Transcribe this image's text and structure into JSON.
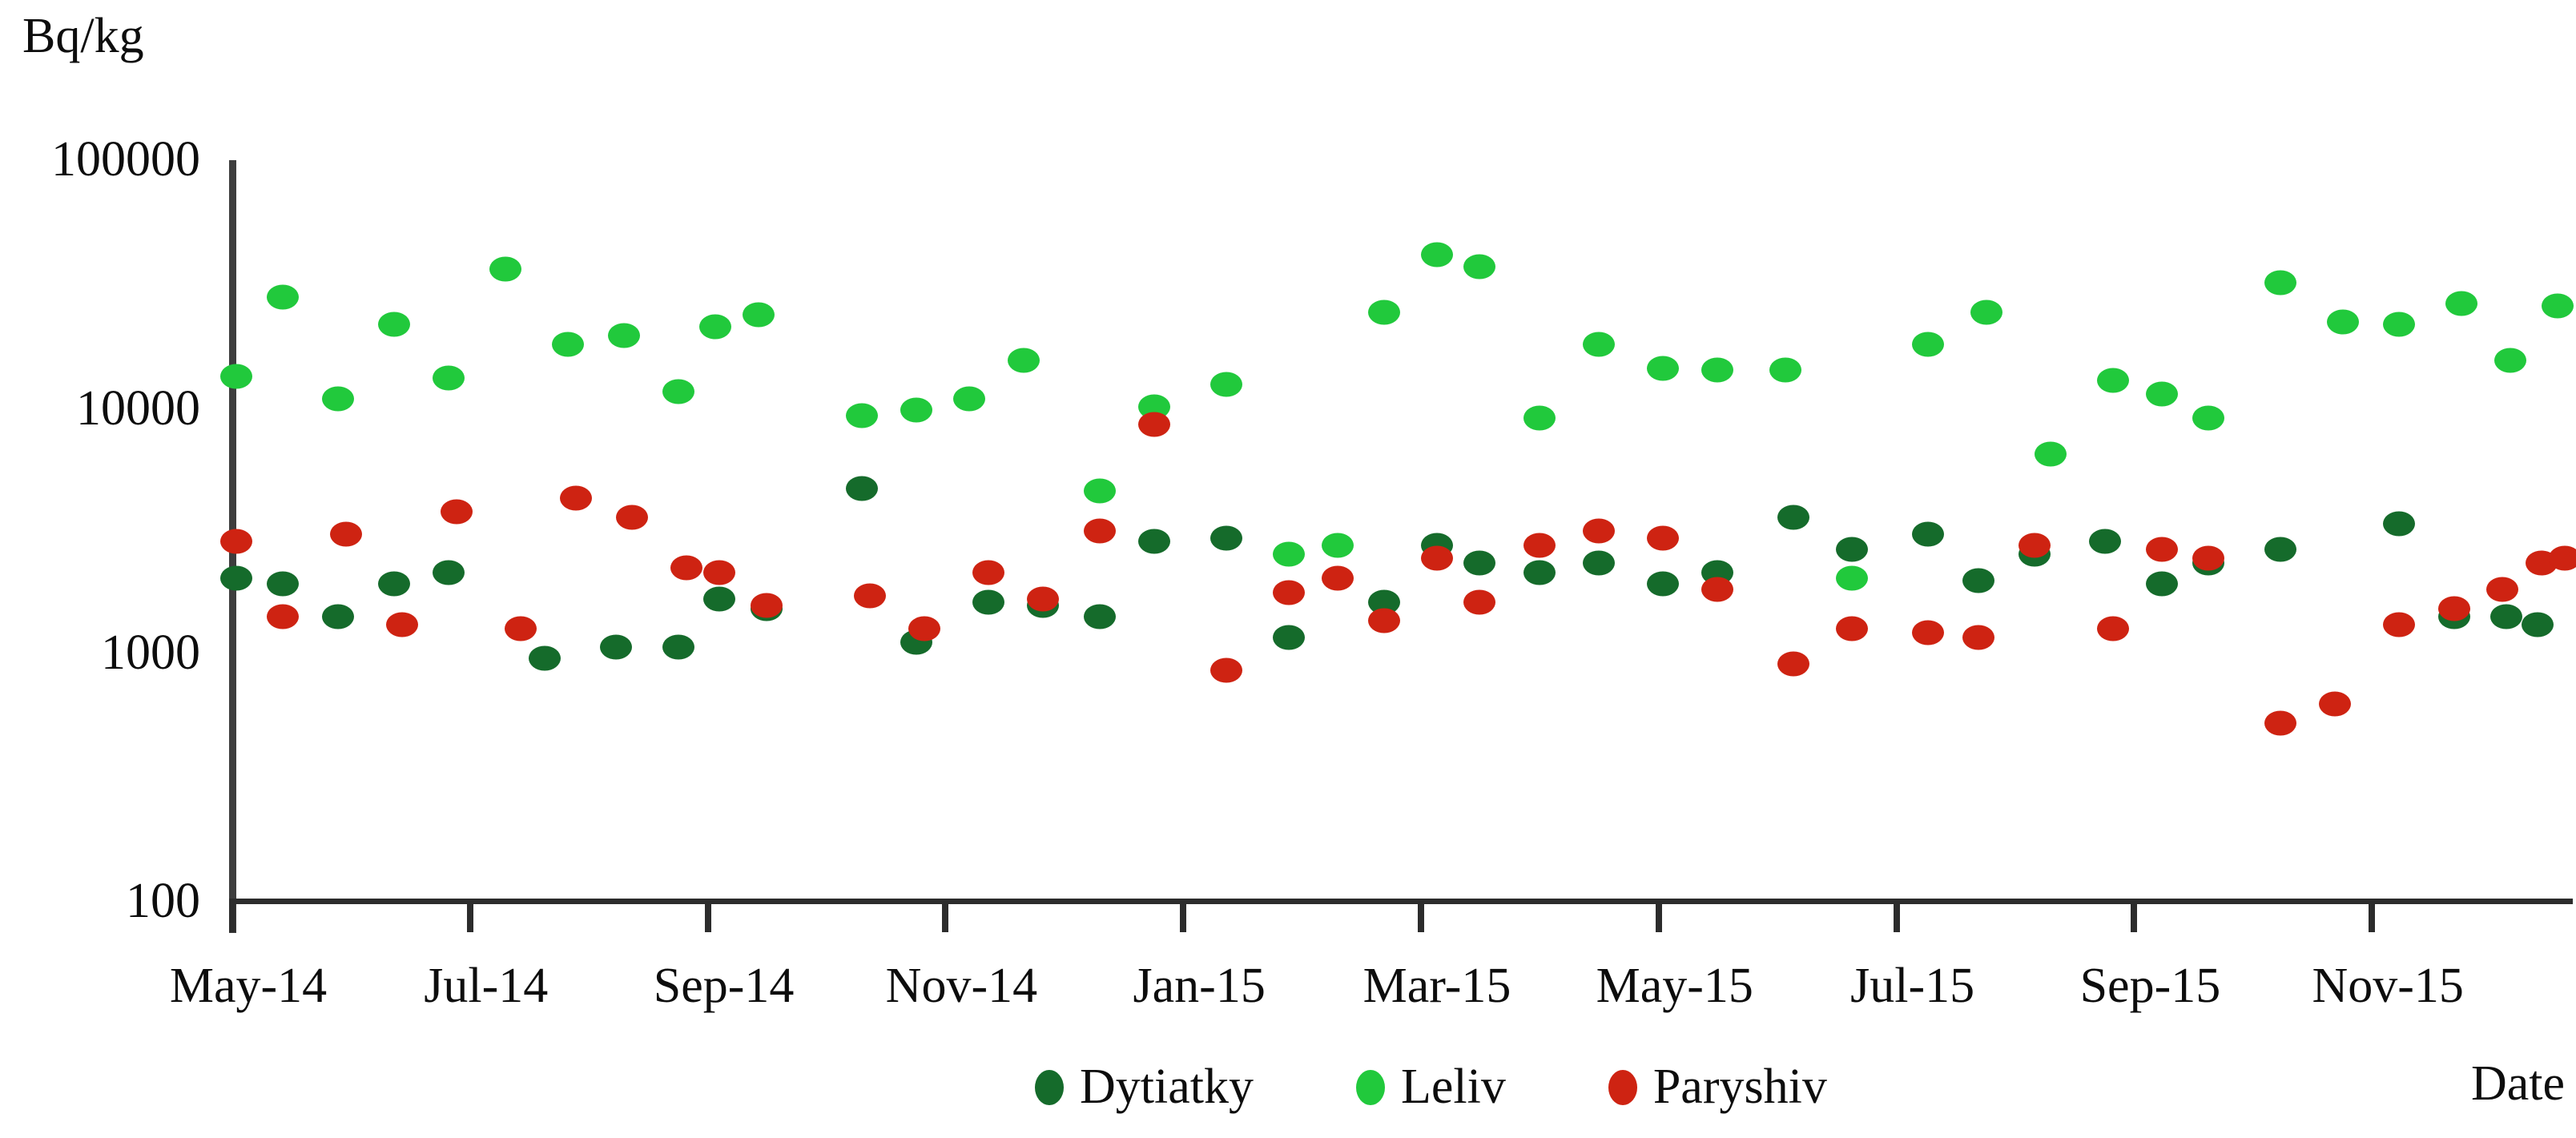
{
  "chart_data": {
    "type": "scatter",
    "title": "",
    "ylabel": "Bq/kg",
    "xlabel": "Date",
    "y_scale": "log",
    "ylim": [
      100,
      100000
    ],
    "y_tick_labels": [
      "100",
      "1000",
      "10000",
      "100000"
    ],
    "y_tick_values": [
      100,
      1000,
      10000,
      100000
    ],
    "x_tick_labels": [
      "May-14",
      "Jul-14",
      "Sep-14",
      "Nov-14",
      "Jan-15",
      "Mar-15",
      "May-15",
      "Jul-15",
      "Sep-15",
      "Nov-15"
    ],
    "grid": false,
    "legend_position": "bottom-center",
    "series": [
      {
        "name": "Dytiatky",
        "color": "#156B2B",
        "points": [
          [
            "2014-05-02",
            2000
          ],
          [
            "2014-05-14",
            1900
          ],
          [
            "2014-05-28",
            1400
          ],
          [
            "2014-06-12",
            1900
          ],
          [
            "2014-06-26",
            2100
          ],
          [
            "2014-07-20",
            950
          ],
          [
            "2014-08-08",
            1050
          ],
          [
            "2014-08-24",
            1050
          ],
          [
            "2014-09-04",
            1650
          ],
          [
            "2014-09-16",
            1500
          ],
          [
            "2014-10-10",
            4600
          ],
          [
            "2014-10-24",
            1100
          ],
          [
            "2014-11-12",
            1600
          ],
          [
            "2014-11-26",
            1550
          ],
          [
            "2014-12-10",
            1400
          ],
          [
            "2014-12-24",
            2800
          ],
          [
            "2015-01-12",
            2900
          ],
          [
            "2015-01-28",
            1150
          ],
          [
            "2015-02-22",
            1600
          ],
          [
            "2015-03-05",
            2700
          ],
          [
            "2015-03-16",
            2300
          ],
          [
            "2015-04-01",
            2100
          ],
          [
            "2015-04-16",
            2300
          ],
          [
            "2015-05-02",
            1900
          ],
          [
            "2015-05-16",
            2100
          ],
          [
            "2015-06-05",
            3500
          ],
          [
            "2015-06-20",
            2600
          ],
          [
            "2015-07-09",
            3000
          ],
          [
            "2015-07-22",
            1950
          ],
          [
            "2015-08-06",
            2500
          ],
          [
            "2015-08-24",
            2800
          ],
          [
            "2015-09-08",
            1900
          ],
          [
            "2015-09-20",
            2300
          ],
          [
            "2015-10-08",
            2600
          ],
          [
            "2015-11-08",
            3300
          ],
          [
            "2015-11-22",
            1400
          ],
          [
            "2015-12-05",
            1400
          ],
          [
            "2015-12-13",
            1300
          ]
        ]
      },
      {
        "name": "Leliv",
        "color": "#21C93C",
        "points": [
          [
            "2014-05-02",
            13000
          ],
          [
            "2014-05-14",
            27000
          ],
          [
            "2014-05-28",
            10500
          ],
          [
            "2014-06-12",
            21000
          ],
          [
            "2014-06-26",
            12800
          ],
          [
            "2014-07-10",
            35000
          ],
          [
            "2014-07-26",
            17500
          ],
          [
            "2014-08-10",
            19000
          ],
          [
            "2014-08-24",
            11300
          ],
          [
            "2014-09-03",
            20500
          ],
          [
            "2014-09-14",
            23000
          ],
          [
            "2014-10-10",
            9000
          ],
          [
            "2014-10-24",
            9500
          ],
          [
            "2014-11-07",
            10500
          ],
          [
            "2014-11-21",
            15000
          ],
          [
            "2014-12-10",
            4500
          ],
          [
            "2014-12-24",
            9800
          ],
          [
            "2015-01-12",
            12000
          ],
          [
            "2015-01-28",
            2500
          ],
          [
            "2015-02-10",
            2700
          ],
          [
            "2015-02-22",
            23500
          ],
          [
            "2015-03-05",
            40000
          ],
          [
            "2015-03-16",
            36000
          ],
          [
            "2015-04-01",
            8800
          ],
          [
            "2015-04-16",
            17500
          ],
          [
            "2015-05-02",
            14000
          ],
          [
            "2015-05-16",
            13800
          ],
          [
            "2015-06-03",
            13800
          ],
          [
            "2015-06-20",
            2000
          ],
          [
            "2015-07-09",
            17500
          ],
          [
            "2015-07-24",
            23500
          ],
          [
            "2015-08-10",
            6300
          ],
          [
            "2015-08-26",
            12500
          ],
          [
            "2015-09-08",
            11000
          ],
          [
            "2015-09-20",
            8800
          ],
          [
            "2015-10-08",
            31000
          ],
          [
            "2015-10-24",
            21500
          ],
          [
            "2015-11-08",
            21000
          ],
          [
            "2015-11-24",
            25500
          ],
          [
            "2015-12-06",
            15000
          ],
          [
            "2015-12-18",
            25000
          ]
        ]
      },
      {
        "name": "Paryshiv",
        "color": "#CE2312",
        "points": [
          [
            "2014-05-02",
            2800
          ],
          [
            "2014-05-14",
            1400
          ],
          [
            "2014-05-30",
            3000
          ],
          [
            "2014-06-14",
            1300
          ],
          [
            "2014-06-28",
            3700
          ],
          [
            "2014-07-14",
            1250
          ],
          [
            "2014-07-28",
            4200
          ],
          [
            "2014-08-12",
            3500
          ],
          [
            "2014-08-26",
            2200
          ],
          [
            "2014-09-04",
            2100
          ],
          [
            "2014-09-16",
            1550
          ],
          [
            "2014-10-12",
            1700
          ],
          [
            "2014-10-26",
            1250
          ],
          [
            "2014-11-12",
            2100
          ],
          [
            "2014-11-26",
            1650
          ],
          [
            "2014-12-10",
            3100
          ],
          [
            "2014-12-24",
            8300
          ],
          [
            "2015-01-12",
            850
          ],
          [
            "2015-01-28",
            1750
          ],
          [
            "2015-02-10",
            2000
          ],
          [
            "2015-02-22",
            1350
          ],
          [
            "2015-03-05",
            2400
          ],
          [
            "2015-03-16",
            1600
          ],
          [
            "2015-04-01",
            2700
          ],
          [
            "2015-04-16",
            3100
          ],
          [
            "2015-05-02",
            2900
          ],
          [
            "2015-05-16",
            1800
          ],
          [
            "2015-06-05",
            900
          ],
          [
            "2015-06-20",
            1250
          ],
          [
            "2015-07-09",
            1200
          ],
          [
            "2015-07-22",
            1150
          ],
          [
            "2015-08-06",
            2700
          ],
          [
            "2015-08-26",
            1250
          ],
          [
            "2015-09-08",
            2600
          ],
          [
            "2015-09-20",
            2400
          ],
          [
            "2015-10-08",
            520
          ],
          [
            "2015-10-22",
            620
          ],
          [
            "2015-11-08",
            1300
          ],
          [
            "2015-11-22",
            1500
          ],
          [
            "2015-12-04",
            1800
          ],
          [
            "2015-12-14",
            2300
          ],
          [
            "2015-12-20",
            2400
          ]
        ]
      }
    ]
  }
}
